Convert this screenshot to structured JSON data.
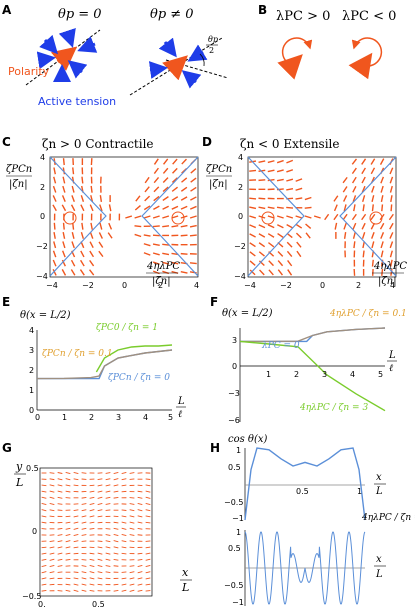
{
  "panel_labels": {
    "A": "A",
    "B": "B",
    "C": "C",
    "D": "D",
    "E": "E",
    "F": "F",
    "G": "G",
    "H": "H"
  },
  "colors": {
    "orange": "#f0561e",
    "blue": "#1f3de8",
    "curve_blue": "#5b8fd8",
    "green": "#7acc2c",
    "tan": "#e0a030",
    "grey": "#a09080"
  },
  "panel_A": {
    "title_left": "θp = 0",
    "title_right": "θp ≠ 0",
    "angle_label_num": "θp",
    "angle_label_den": "2",
    "polarity": "Polarity",
    "tension": "Active tension"
  },
  "panel_B": {
    "left": "λPC > 0",
    "right": "λPC < 0"
  },
  "panel_C": {
    "title": "ζn > 0 Contractile",
    "ylabel_num": "ζPCn",
    "ylabel_den": "|ζn|",
    "xlabel_num": "4ηλPC",
    "xlabel_den": "|ζn|",
    "xticks": [
      "−4",
      "−2",
      "0",
      "2",
      "4"
    ],
    "yticks": [
      "4",
      "2",
      "0",
      "−2",
      "−4"
    ]
  },
  "panel_D": {
    "title": "ζn < 0 Extensile",
    "ylabel_num": "ζPCn",
    "ylabel_den": "|ζn|",
    "xlabel_num": "4ηλPC",
    "xlabel_den": "|ζn|",
    "xticks": [
      "−4",
      "−2",
      "0",
      "2",
      "4"
    ],
    "yticks": [
      "4",
      "2",
      "0",
      "−2",
      "−4"
    ]
  },
  "panel_E": {
    "ylabel": "θ(x = L/2)",
    "xlabel_num": "L",
    "xlabel_den": "ℓ",
    "annotation_green": "ζPC0 / ζn = 1",
    "annotation_tan": "ζPCn / ζn = 0.1",
    "annotation_blue": "ζPCn / ζn = 0",
    "xticks": [
      "0",
      "1",
      "2",
      "3",
      "4",
      "5"
    ],
    "yticks": [
      "0",
      "1",
      "2",
      "3",
      "4"
    ]
  },
  "panel_F": {
    "ylabel": "θ(x = L/2)",
    "xlabel_num": "L",
    "xlabel_den": "ℓ",
    "annotation_tan": "4ηλPC / ζn = 0.1",
    "annotation_blue": "λPC = 0",
    "annotation_green": "4ηλPC / ζn = 3",
    "xticks": [
      "1",
      "2",
      "3",
      "4",
      "5"
    ],
    "yticks": [
      "3",
      "0",
      "−3",
      "−6"
    ]
  },
  "panel_G": {
    "ylabel_num": "y",
    "ylabel_den": "L",
    "xlabel_num": "x",
    "xlabel_den": "L",
    "xticks": [
      "0.",
      "0.5"
    ],
    "yticks": [
      "0.5",
      "0",
      "−0.5"
    ]
  },
  "panel_H": {
    "ylabel": "cos θ(x)",
    "xlabel_num": "x",
    "xlabel_den": "L",
    "param": "4ηλPC / ζn = 12",
    "top_yticks": [
      "1",
      "0.5",
      "−0.5",
      "−1"
    ],
    "top_xticks": [
      "0.5",
      "1"
    ],
    "bot_yticks": [
      "1",
      "0.5",
      "−0.5",
      "−1"
    ]
  },
  "chart_data": [
    {
      "type": "line",
      "panel": "E",
      "xlabel": "L/ℓ",
      "ylabel": "θ(x = L/2)",
      "xlim": [
        0,
        5
      ],
      "ylim": [
        0,
        4
      ],
      "series": [
        {
          "name": "ζPCn/ζn = 0",
          "x": [
            0,
            1,
            2,
            2.3,
            2.5,
            3,
            4,
            5
          ],
          "y": [
            1.57,
            1.57,
            1.57,
            1.57,
            2.2,
            2.6,
            2.85,
            3.0
          ]
        },
        {
          "name": "ζPCn/ζn = 0.1",
          "x": [
            0,
            1,
            2,
            2.3,
            2.5,
            3,
            4,
            5
          ],
          "y": [
            1.57,
            1.58,
            1.62,
            1.7,
            2.2,
            2.6,
            2.85,
            3.0
          ]
        },
        {
          "name": "ζPC0/ζn = 1",
          "x": [
            2.2,
            2.5,
            3,
            3.5,
            4,
            4.5,
            5
          ],
          "y": [
            1.9,
            2.6,
            3.0,
            3.15,
            3.2,
            3.2,
            3.25
          ]
        }
      ]
    },
    {
      "type": "line",
      "panel": "F",
      "xlabel": "L/ℓ",
      "ylabel": "θ(x = L/2)",
      "xlim": [
        0,
        5
      ],
      "ylim": [
        -7,
        3
      ],
      "series": [
        {
          "name": "λPC = 0",
          "x": [
            0,
            1,
            2,
            2.3,
            2.5,
            3,
            4,
            5
          ],
          "y": [
            1.57,
            1.57,
            1.57,
            1.57,
            2.2,
            2.6,
            2.85,
            3.0
          ]
        },
        {
          "name": "4ηλPC/ζn = 0.1",
          "x": [
            0,
            1,
            2,
            2.5,
            3,
            4,
            5
          ],
          "y": [
            1.57,
            1.57,
            1.6,
            2.2,
            2.6,
            2.85,
            3.0
          ]
        },
        {
          "name": "4ηλPC/ζn = 3",
          "x": [
            0,
            1,
            2,
            3,
            4,
            5
          ],
          "y": [
            1.57,
            1.3,
            1.0,
            -2.0,
            -4.0,
            -5.8
          ]
        }
      ]
    },
    {
      "type": "line",
      "panel": "H-top",
      "xlabel": "x/L",
      "ylabel": "cos θ(x)",
      "xlim": [
        0,
        1
      ],
      "ylim": [
        -1,
        1
      ],
      "series": [
        {
          "name": "cos θ",
          "x": [
            0,
            0.05,
            0.1,
            0.2,
            0.3,
            0.4,
            0.5,
            0.6,
            0.7,
            0.8,
            0.9,
            0.95,
            1
          ],
          "y": [
            -1,
            0.4,
            1,
            0.95,
            0.7,
            0.5,
            0.6,
            0.5,
            0.7,
            0.95,
            1,
            0.4,
            -1
          ]
        }
      ]
    },
    {
      "type": "line",
      "panel": "H-bottom",
      "xlabel": "x/L",
      "ylabel": "cos θ(x)",
      "xlim": [
        0,
        1
      ],
      "ylim": [
        -1,
        1
      ],
      "series": [
        {
          "name": "4ηλPC/ζn = 12",
          "x": [
            0,
            1
          ],
          "y": [
            1,
            1
          ]
        }
      ]
    }
  ]
}
